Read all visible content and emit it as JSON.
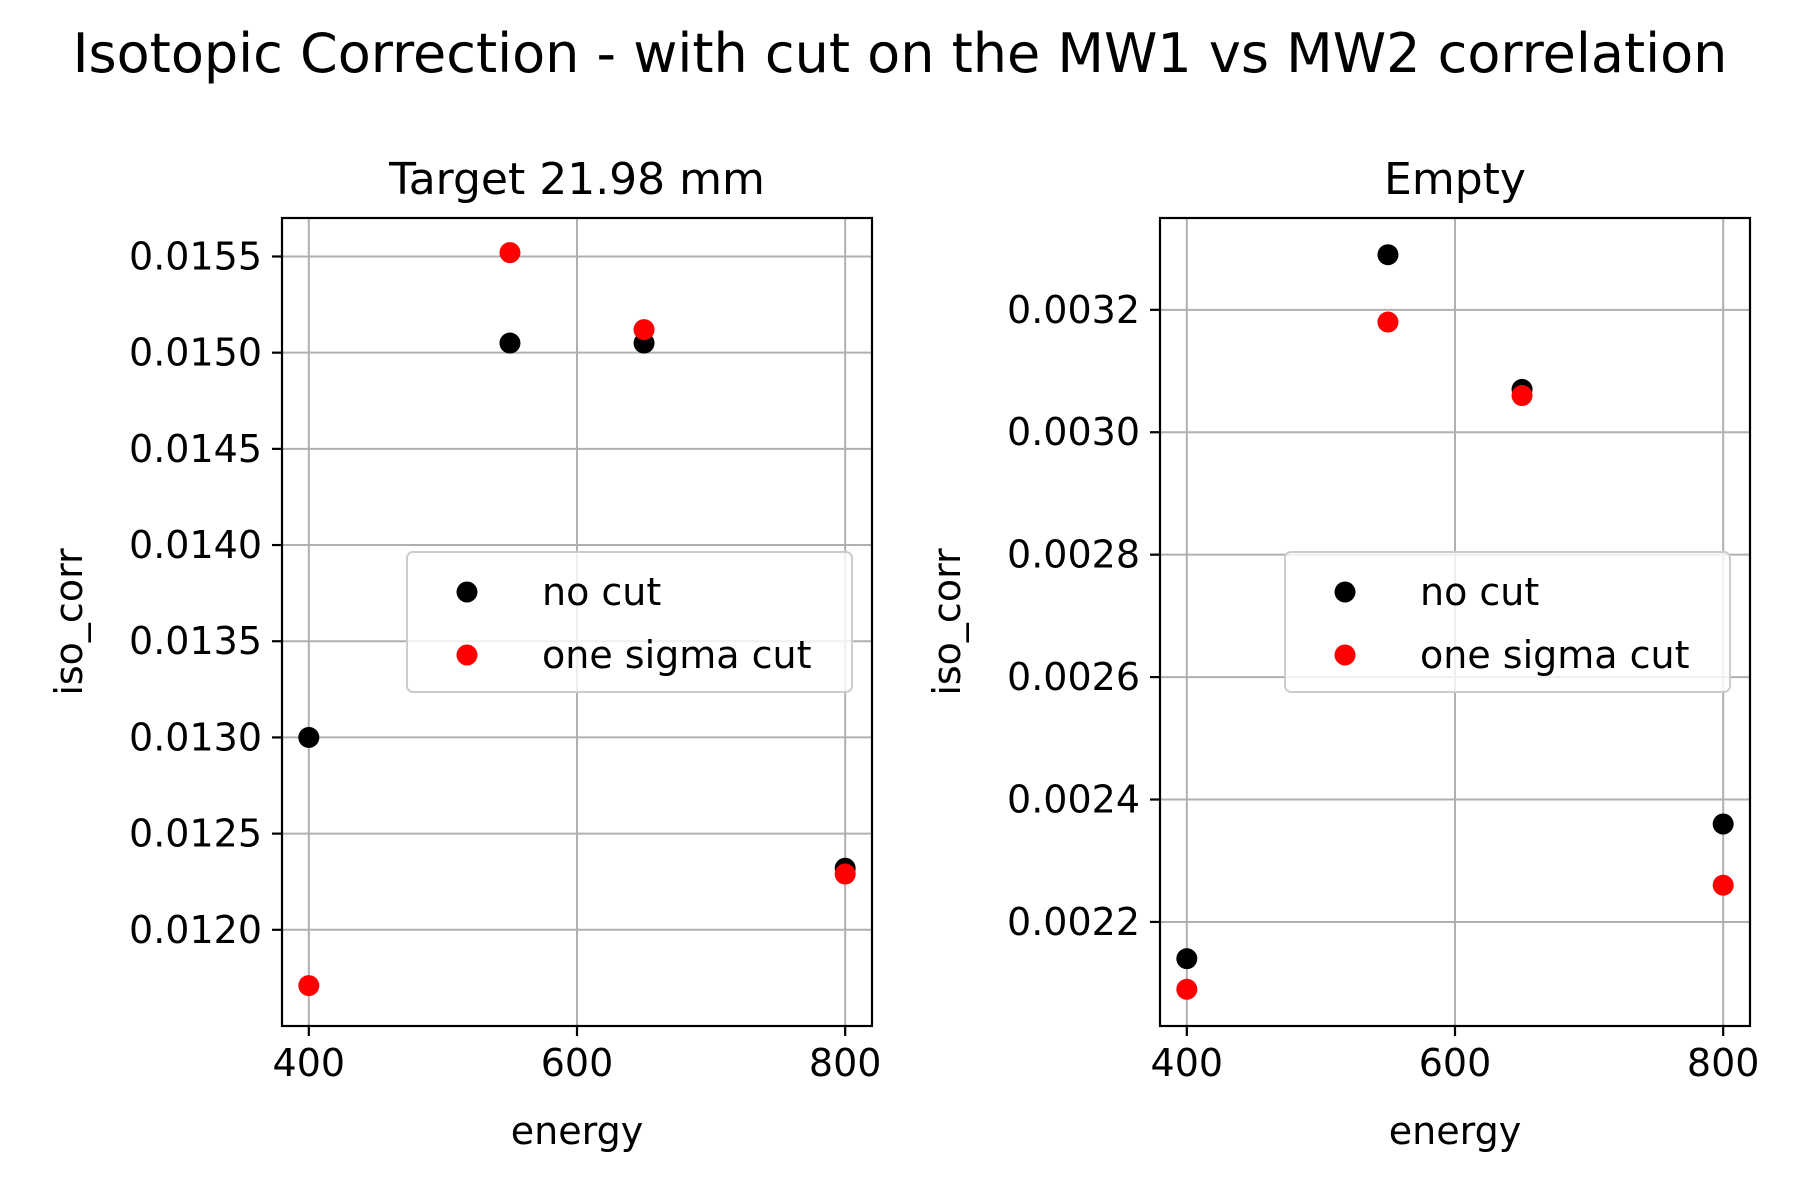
{
  "figure": {
    "suptitle": "Isotopic Correction - with cut on the MW1 vs MW2 correlation"
  },
  "chart_data": [
    {
      "type": "scatter",
      "title": "Target 21.98 mm",
      "xlabel": "energy",
      "ylabel": "iso_corr",
      "xlim": [
        380,
        820
      ],
      "ylim": [
        0.0115,
        0.0157
      ],
      "xticks": [
        400,
        600,
        800
      ],
      "xtick_labels": [
        "400",
        "600",
        "800"
      ],
      "yticks": [
        0.012,
        0.0125,
        0.013,
        0.0135,
        0.014,
        0.0145,
        0.015,
        0.0155
      ],
      "ytick_labels": [
        "0.0120",
        "0.0125",
        "0.0130",
        "0.0135",
        "0.0140",
        "0.0145",
        "0.0150",
        "0.0155"
      ],
      "grid": true,
      "legend": "center-right",
      "series": [
        {
          "name": "no cut",
          "color": "#000000",
          "x": [
            400,
            550,
            650,
            800
          ],
          "y": [
            0.013,
            0.01505,
            0.01505,
            0.01232
          ]
        },
        {
          "name": "one sigma cut",
          "color": "#ff0000",
          "x": [
            400,
            550,
            650,
            800
          ],
          "y": [
            0.01171,
            0.01552,
            0.01512,
            0.01229
          ]
        }
      ]
    },
    {
      "type": "scatter",
      "title": "Empty",
      "xlabel": "energy",
      "ylabel": "iso_corr",
      "xlim": [
        380,
        820
      ],
      "ylim": [
        0.00203,
        0.00335
      ],
      "xticks": [
        400,
        600,
        800
      ],
      "xtick_labels": [
        "400",
        "600",
        "800"
      ],
      "yticks": [
        0.0022,
        0.0024,
        0.0026,
        0.0028,
        0.003,
        0.0032
      ],
      "ytick_labels": [
        "0.0022",
        "0.0024",
        "0.0026",
        "0.0028",
        "0.0030",
        "0.0032"
      ],
      "grid": true,
      "legend": "center-right",
      "series": [
        {
          "name": "no cut",
          "color": "#000000",
          "x": [
            400,
            550,
            650,
            800
          ],
          "y": [
            0.00214,
            0.00329,
            0.00307,
            0.00236
          ]
        },
        {
          "name": "one sigma cut",
          "color": "#ff0000",
          "x": [
            400,
            550,
            650,
            800
          ],
          "y": [
            0.00209,
            0.00318,
            0.00306,
            0.00226
          ]
        }
      ]
    }
  ]
}
